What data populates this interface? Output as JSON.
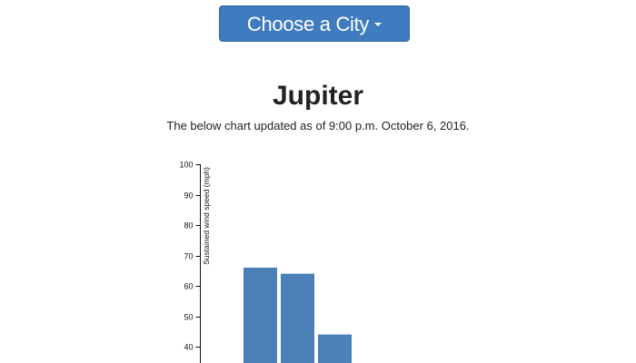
{
  "city_selector": {
    "label": "Choose a City",
    "button_color": "#3f7bbf",
    "caret_icon": "caret-down-icon"
  },
  "header": {
    "title": "Jupiter",
    "subtitle": "The below chart updated as of 9:00 p.m. October 6, 2016."
  },
  "chart_data": {
    "type": "bar",
    "ylabel": "Sustained wind speed (mph)",
    "xlabel": "",
    "ylim": [
      0,
      100
    ],
    "yticks": [
      40,
      50,
      60,
      70,
      80,
      90,
      100
    ],
    "values": [
      66,
      64,
      44
    ],
    "bar_color": "#4a80b5",
    "grid": false
  }
}
